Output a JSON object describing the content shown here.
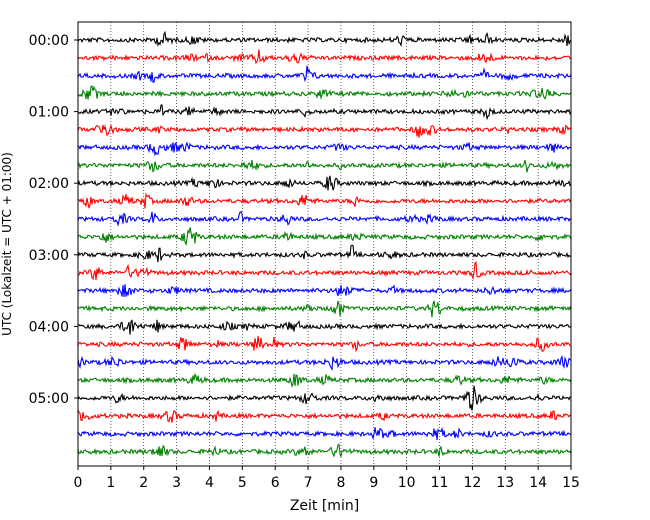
{
  "chart_data": {
    "type": "line",
    "title": "",
    "xlabel": "Zeit  [min]",
    "ylabel": "UTC (Lokalzeit = UTC + 01:00)",
    "xlim": [
      0,
      15
    ],
    "x_ticks": [
      "0",
      "1",
      "2",
      "3",
      "4",
      "5",
      "6",
      "7",
      "8",
      "9",
      "10",
      "11",
      "12",
      "13",
      "14",
      "15"
    ],
    "y_ticks": [
      "00:00",
      "01:00",
      "02:00",
      "03:00",
      "04:00",
      "05:00"
    ],
    "grid": "vertical dotted lines at each minute",
    "legend": "none",
    "trace_interval_minutes": 15,
    "trace_colors_cycle": [
      "#000000",
      "#ff0000",
      "#0000ff",
      "#008000"
    ],
    "series": [
      {
        "start": "00:00",
        "color": "#000000"
      },
      {
        "start": "00:15",
        "color": "#ff0000"
      },
      {
        "start": "00:30",
        "color": "#0000ff"
      },
      {
        "start": "00:45",
        "color": "#008000"
      },
      {
        "start": "01:00",
        "color": "#000000"
      },
      {
        "start": "01:15",
        "color": "#ff0000"
      },
      {
        "start": "01:30",
        "color": "#0000ff"
      },
      {
        "start": "01:45",
        "color": "#008000"
      },
      {
        "start": "02:00",
        "color": "#000000"
      },
      {
        "start": "02:15",
        "color": "#ff0000"
      },
      {
        "start": "02:30",
        "color": "#0000ff"
      },
      {
        "start": "02:45",
        "color": "#008000"
      },
      {
        "start": "03:00",
        "color": "#000000"
      },
      {
        "start": "03:15",
        "color": "#ff0000"
      },
      {
        "start": "03:30",
        "color": "#0000ff"
      },
      {
        "start": "03:45",
        "color": "#008000"
      },
      {
        "start": "04:00",
        "color": "#000000"
      },
      {
        "start": "04:15",
        "color": "#ff0000"
      },
      {
        "start": "04:30",
        "color": "#0000ff"
      },
      {
        "start": "04:45",
        "color": "#008000"
      },
      {
        "start": "05:00",
        "color": "#000000"
      },
      {
        "start": "05:15",
        "color": "#ff0000"
      },
      {
        "start": "05:30",
        "color": "#0000ff"
      },
      {
        "start": "05:45",
        "color": "#008000"
      }
    ]
  }
}
